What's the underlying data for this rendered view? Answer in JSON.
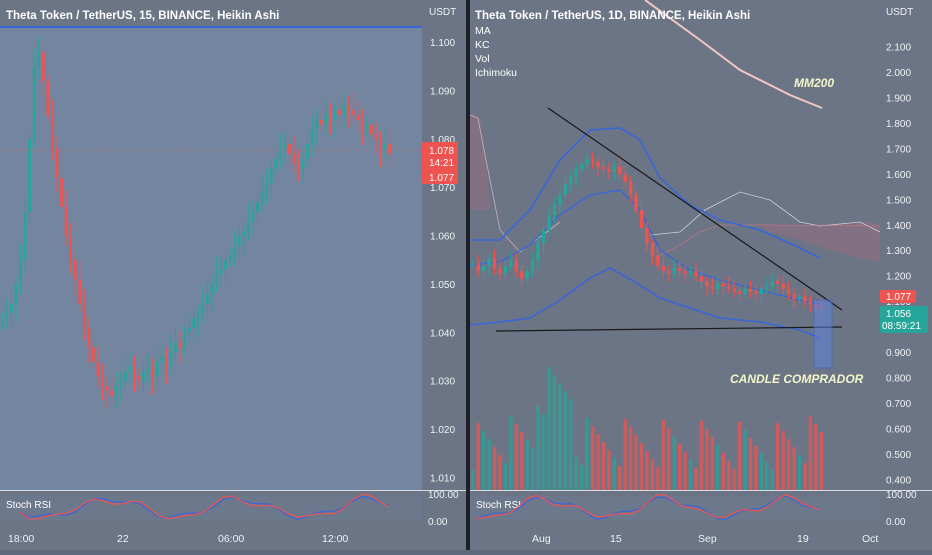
{
  "colors": {
    "up": "#26a69a",
    "down": "#ef5350",
    "background": "#6b7585",
    "left_panel_bg": "#7485a0",
    "text": "#f0f2f5",
    "ma": "#f0c8c8",
    "kc": "#3a66d8",
    "stoch_k": "#3a66d8",
    "stoch_d": "#ef5350",
    "trend": "#1a1a1a",
    "annot": "#f3f6c8"
  },
  "left": {
    "title": "Theta Token / TetherUS, 15, BINANCE, Heikin Ashi",
    "unit": "USDT",
    "price_badge": {
      "price": "1.078",
      "countdown": "14:21"
    },
    "last_badge": "1.077",
    "stoch_label": "Stoch RSI",
    "stoch_ticks": [
      "100.00",
      "0.00"
    ],
    "time_labels": [
      "18:00",
      "22",
      "06:00",
      "12:00"
    ]
  },
  "right": {
    "title": "Theta Token / TetherUS, 1D, BINANCE, Heikin Ashi",
    "unit": "USDT",
    "indicators": [
      "MA",
      "KC",
      "Vol",
      "Ichimoku"
    ],
    "annotations": {
      "ma": "MM200",
      "candle": "CANDLE COMPRADOR"
    },
    "price_badge": "1.077",
    "last_badge": {
      "price": "1.056",
      "countdown": "08:59:21"
    },
    "stoch_label": "Stoch RSI",
    "stoch_ticks": [
      "100.00",
      "0.00"
    ],
    "time_labels": [
      "Aug",
      "15",
      "Sep",
      "19",
      "Oct"
    ]
  },
  "chart_data": [
    {
      "type": "candlestick",
      "title": "Theta Token / TetherUS, 15, BINANCE, Heikin Ashi",
      "y_ticks": [
        1.1,
        1.09,
        1.08,
        1.07,
        1.06,
        1.05,
        1.04,
        1.03,
        1.02,
        1.01
      ],
      "ylim": [
        1.0075,
        1.103
      ],
      "x_labels": [
        "18:00",
        "22",
        "06:00",
        "12:00"
      ],
      "current_price": 1.078,
      "last_price": 1.077,
      "close_path": [
        1.043,
        1.044,
        1.046,
        1.05,
        1.055,
        1.065,
        1.08,
        1.095,
        1.098,
        1.092,
        1.085,
        1.078,
        1.072,
        1.066,
        1.06,
        1.055,
        1.051,
        1.046,
        1.041,
        1.037,
        1.034,
        1.031,
        1.029,
        1.028,
        1.027,
        1.029,
        1.03,
        1.032,
        1.033,
        1.031,
        1.03,
        1.032,
        1.033,
        1.031,
        1.034,
        1.035,
        1.033,
        1.036,
        1.038,
        1.037,
        1.04,
        1.041,
        1.043,
        1.044,
        1.046,
        1.048,
        1.05,
        1.052,
        1.053,
        1.055,
        1.056,
        1.058,
        1.06,
        1.061,
        1.063,
        1.065,
        1.067,
        1.069,
        1.071,
        1.074,
        1.076,
        1.078,
        1.079,
        1.077,
        1.075,
        1.074,
        1.076,
        1.079,
        1.082,
        1.084,
        1.083,
        1.085,
        1.084,
        1.086,
        1.085,
        1.087,
        1.086,
        1.085,
        1.084,
        1.082,
        1.083,
        1.081,
        1.08,
        1.078,
        1.079,
        1.077
      ]
    },
    {
      "type": "candlestick",
      "title": "Theta Token / TetherUS, 1D, BINANCE, Heikin Ashi",
      "y_ticks": [
        2.1,
        2.0,
        1.9,
        1.8,
        1.7,
        1.6,
        1.5,
        1.4,
        1.3,
        1.2,
        1.1,
        1.0,
        0.9,
        0.8,
        0.7,
        0.6,
        0.5,
        0.4
      ],
      "ylim": [
        0.36,
        2.175
      ],
      "x_labels": [
        "Aug",
        "15",
        "Sep",
        "19",
        "Oct"
      ],
      "current_price": 1.077,
      "last_price": 1.056,
      "close_path": [
        1.25,
        1.22,
        1.24,
        1.27,
        1.23,
        1.21,
        1.24,
        1.26,
        1.22,
        1.19,
        1.22,
        1.26,
        1.33,
        1.38,
        1.44,
        1.48,
        1.52,
        1.56,
        1.59,
        1.62,
        1.64,
        1.66,
        1.65,
        1.63,
        1.62,
        1.61,
        1.63,
        1.6,
        1.57,
        1.52,
        1.46,
        1.39,
        1.33,
        1.28,
        1.24,
        1.22,
        1.21,
        1.23,
        1.22,
        1.21,
        1.22,
        1.2,
        1.18,
        1.16,
        1.15,
        1.17,
        1.16,
        1.15,
        1.14,
        1.13,
        1.15,
        1.14,
        1.13,
        1.15,
        1.16,
        1.18,
        1.17,
        1.15,
        1.13,
        1.11,
        1.12,
        1.1,
        1.09,
        1.08,
        1.077
      ]
    }
  ]
}
